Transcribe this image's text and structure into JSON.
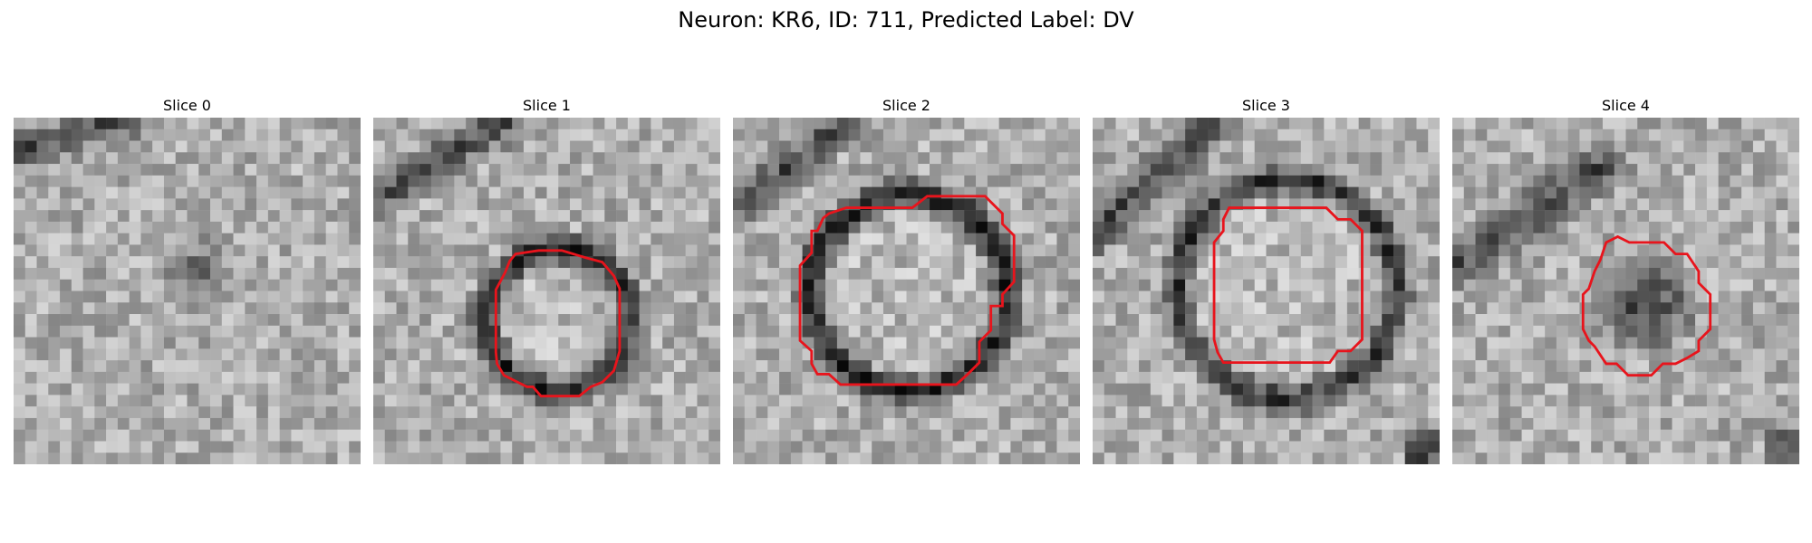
{
  "figure": {
    "title": "Neuron: KR6, ID: 711, Predicted Label: DV"
  },
  "panels": [
    {
      "title": "Slice 0",
      "has_outline": false
    },
    {
      "title": "Slice 1",
      "has_outline": true
    },
    {
      "title": "Slice 2",
      "has_outline": true
    },
    {
      "title": "Slice 3",
      "has_outline": true
    },
    {
      "title": "Slice 4",
      "has_outline": true
    }
  ],
  "colors": {
    "outline": "#e8141c",
    "background": "#ffffff",
    "colormap": "grayscale"
  }
}
